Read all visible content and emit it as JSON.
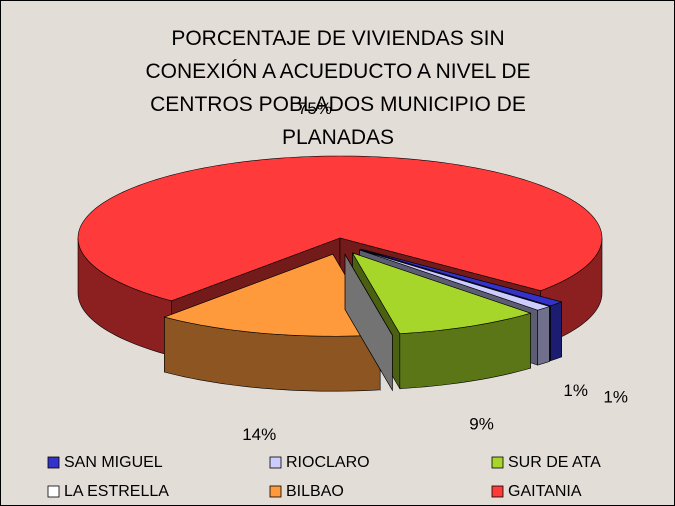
{
  "chart_data": {
    "type": "pie3d",
    "title": "PORCENTAJE DE VIVIENDAS SIN CONEXIÓN A ACUEDUCTO A NIVEL DE CENTROS POBLADOS MUNICIPIO DE PLANADAS",
    "categories": [
      "SAN MIGUEL",
      "RIOCLARO",
      "SUR DE ATA",
      "LA ESTRELLA",
      "BILBAO",
      "GAITANIA"
    ],
    "values": [
      1,
      1,
      9,
      0,
      14,
      75
    ],
    "value_labels": [
      "1%",
      "1%",
      "9%",
      null,
      "14%",
      "75%"
    ],
    "colors": [
      "#3333cc",
      "#ccccff",
      "#a6d62a",
      "#ffffff",
      "#ff9a3c",
      "#ff3a3a"
    ],
    "legend": "bottom"
  }
}
